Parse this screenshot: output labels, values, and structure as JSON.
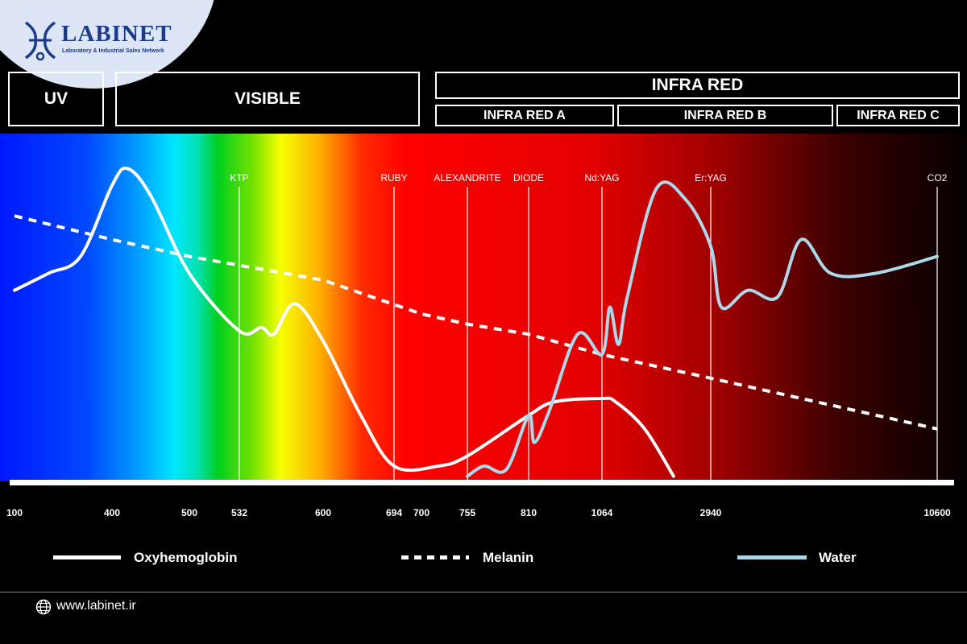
{
  "logo": {
    "name": "LABINET",
    "tagline": "Laboratory & Industrial Sales Network"
  },
  "bands": {
    "uv": "UV",
    "visible": "VISIBLE",
    "infrared": "INFRA RED",
    "ir_a": "INFRA RED A",
    "ir_b": "INFRA RED B",
    "ir_c": "INFRA RED C"
  },
  "chart_data": {
    "type": "line",
    "title": "",
    "xlabel": "",
    "ylabel": "",
    "x_scale": "non-uniform wavelength scale (nm), as printed ticks",
    "x_ticks": [
      "100",
      "400",
      "500",
      "532",
      "600",
      "694",
      "700",
      "755",
      "810",
      "1064",
      "2940",
      "10600"
    ],
    "lasers": [
      "KTP",
      "RUBY",
      "ALEXANDRITE",
      "DIODE",
      "Nd:YAG",
      "Er:YAG",
      "CO2"
    ],
    "laser_wavelengths": [
      532,
      694,
      755,
      810,
      1064,
      2940,
      10600
    ],
    "y_axis": "relative absorption (unlabeled, 0-1)",
    "series": [
      {
        "name": "Oxyhemoglobin",
        "x": [
          100,
          200,
          300,
          400,
          420,
          450,
          500,
          532,
          550,
          560,
          577,
          600,
          650,
          694,
          720,
          755,
          810,
          900,
          1064,
          1300,
          1800,
          2300
        ],
        "values": [
          0.57,
          0.62,
          0.67,
          0.88,
          0.93,
          0.85,
          0.62,
          0.45,
          0.46,
          0.44,
          0.53,
          0.42,
          0.2,
          0.05,
          0.05,
          0.08,
          0.2,
          0.24,
          0.25,
          0.24,
          0.16,
          0.02
        ]
      },
      {
        "name": "Melanin",
        "x": [
          100,
          400,
          500,
          600,
          700,
          755,
          810,
          1064,
          2940,
          10600
        ],
        "values": [
          0.79,
          0.72,
          0.67,
          0.6,
          0.5,
          0.47,
          0.44,
          0.38,
          0.31,
          0.16
        ]
      },
      {
        "name": "Water",
        "x": [
          755,
          770,
          790,
          810,
          830,
          880,
          980,
          1064,
          1200,
          1350,
          1500,
          2000,
          2500,
          2940,
          3300,
          4200,
          5200,
          6000,
          7000,
          8500,
          10600
        ],
        "values": [
          0.02,
          0.05,
          0.04,
          0.2,
          0.12,
          0.21,
          0.44,
          0.38,
          0.52,
          0.41,
          0.55,
          0.87,
          0.84,
          0.7,
          0.52,
          0.57,
          0.55,
          0.72,
          0.62,
          0.62,
          0.67
        ]
      }
    ]
  },
  "legend": {
    "oxy": "Oxyhemoglobin",
    "melanin": "Melanin",
    "water": "Water"
  },
  "colors": {
    "oxy": "#ffffff",
    "melanin": "#ffffff",
    "water": "#acd8ea",
    "logo": "#1b3a8a"
  },
  "footer": {
    "url": "www.labinet.ir"
  }
}
